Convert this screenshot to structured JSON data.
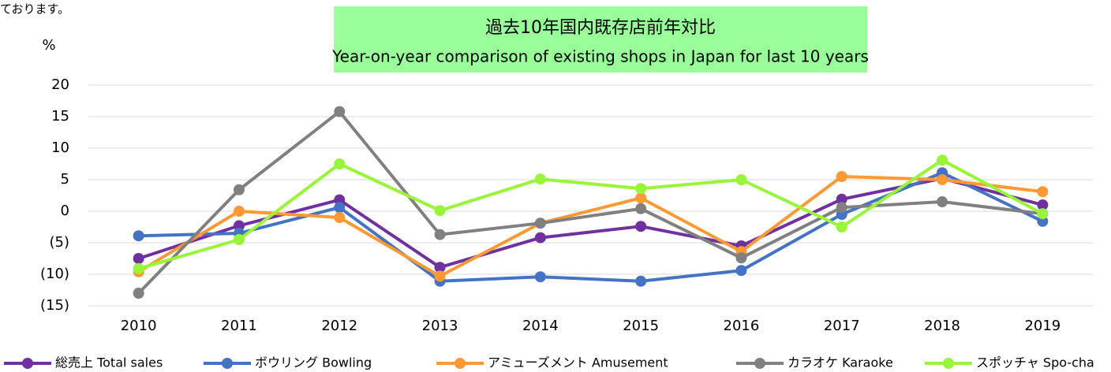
{
  "chart_data": {
    "type": "line",
    "note": "ております。",
    "title": "過去10年国内既存店前年対比",
    "subtitle": "Year-on-year comparison of existing shops in Japan for last 10 years",
    "y_label": "%",
    "title_background": "#99ff99",
    "grid": true,
    "legend": "bottom",
    "categories": [
      "2010",
      "2011",
      "2012",
      "2013",
      "2014",
      "2015",
      "2016",
      "2017",
      "2018",
      "2019"
    ],
    "ylim": [
      -15,
      20
    ],
    "yticks": [
      20,
      15,
      10,
      5,
      0,
      {
        "value": -5,
        "label": "(5)"
      },
      {
        "value": -10,
        "label": "(10)"
      },
      {
        "value": -15,
        "label": "(15)"
      }
    ],
    "series": [
      {
        "name": "総売上 Total sales",
        "color": "#7030a0",
        "values": [
          -7.5,
          -2.3,
          1.8,
          -8.9,
          -4.2,
          -2.4,
          -5.5,
          1.9,
          5.2,
          1.0
        ]
      },
      {
        "name": "ボウリング Bowling",
        "color": "#4472c4",
        "values": [
          -3.9,
          -3.5,
          0.6,
          -11.1,
          -10.4,
          -11.1,
          -9.4,
          -0.5,
          6.1,
          -1.6
        ]
      },
      {
        "name": "アミューズメント Amusement",
        "color": "#ff9933",
        "values": [
          -9.6,
          0,
          -1.0,
          -10.3,
          -1.9,
          2.1,
          -6.4,
          5.5,
          5.0,
          3.1
        ]
      },
      {
        "name": "カラオケ Karaoke",
        "color": "#808080",
        "values": [
          -13,
          3.4,
          15.8,
          -3.7,
          -1.9,
          0.4,
          -7.4,
          0.6,
          1.5,
          -0.4
        ]
      },
      {
        "name": "スポッチャ Spo-cha",
        "color": "#99f53a",
        "values": [
          -9.1,
          -4.5,
          7.5,
          0.1,
          5.1,
          3.6,
          5.0,
          -2.5,
          8.1,
          -0.4
        ]
      }
    ]
  }
}
